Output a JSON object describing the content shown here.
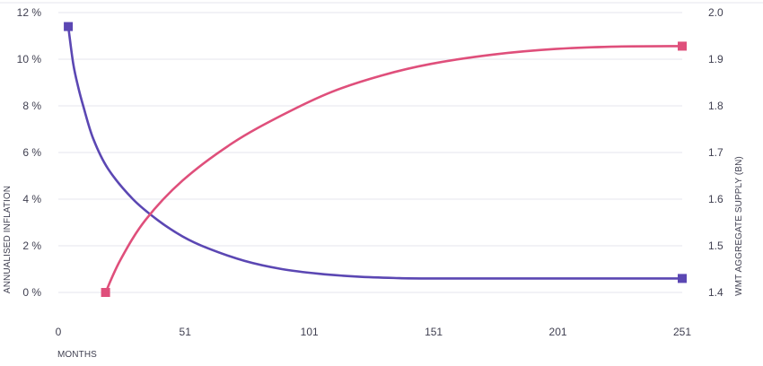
{
  "chart_data": {
    "type": "line",
    "xlabel": "MONTHS",
    "ylabel_left": "ANNUALISED INFLATION",
    "ylabel_right": "WMT AGGREGATE SUPPLY (BN)",
    "x_ticks": [
      0,
      51,
      101,
      151,
      201,
      251
    ],
    "x_tick_labels": [
      "0",
      "51",
      "101",
      "151",
      "201",
      "251"
    ],
    "xlim": [
      0,
      251
    ],
    "y_left_ticks": [
      0,
      2,
      4,
      6,
      8,
      10,
      12
    ],
    "y_left_tick_labels": [
      "0 %",
      "2 %",
      "4 %",
      "6 %",
      "8 %",
      "10 %",
      "12 %"
    ],
    "y_left_lim": [
      0,
      12
    ],
    "y_right_ticks": [
      1.4,
      1.5,
      1.6,
      1.7,
      1.8,
      1.9,
      2.0
    ],
    "y_right_tick_labels": [
      "1.4",
      "1.5",
      "1.6",
      "1.7",
      "1.8",
      "1.9",
      "2.0"
    ],
    "y_right_lim": [
      1.4,
      2.0
    ],
    "grid": true,
    "colors": {
      "inflation": "#5B47B3",
      "supply": "#DF4F7B",
      "grid": "#E6E6EC",
      "text": "#3F3F50"
    },
    "series": [
      {
        "axis": "left",
        "color": "#5B47B3",
        "points": [
          [
            4,
            11.4
          ],
          [
            6,
            9.8
          ],
          [
            8,
            8.8
          ],
          [
            10,
            8.0
          ],
          [
            14,
            6.6
          ],
          [
            20,
            5.3
          ],
          [
            30,
            4.0
          ],
          [
            40,
            3.1
          ],
          [
            50,
            2.4
          ],
          [
            60,
            1.9
          ],
          [
            75,
            1.35
          ],
          [
            90,
            1.0
          ],
          [
            105,
            0.8
          ],
          [
            120,
            0.68
          ],
          [
            135,
            0.62
          ],
          [
            150,
            0.6
          ],
          [
            200,
            0.6
          ],
          [
            251,
            0.6
          ]
        ]
      },
      {
        "axis": "right",
        "color": "#DF4F7B",
        "points": [
          [
            19,
            1.4
          ],
          [
            25,
            1.47
          ],
          [
            35,
            1.555
          ],
          [
            50,
            1.64
          ],
          [
            70,
            1.72
          ],
          [
            90,
            1.78
          ],
          [
            110,
            1.83
          ],
          [
            130,
            1.865
          ],
          [
            150,
            1.89
          ],
          [
            175,
            1.91
          ],
          [
            200,
            1.922
          ],
          [
            225,
            1.927
          ],
          [
            251,
            1.928
          ]
        ]
      }
    ]
  }
}
